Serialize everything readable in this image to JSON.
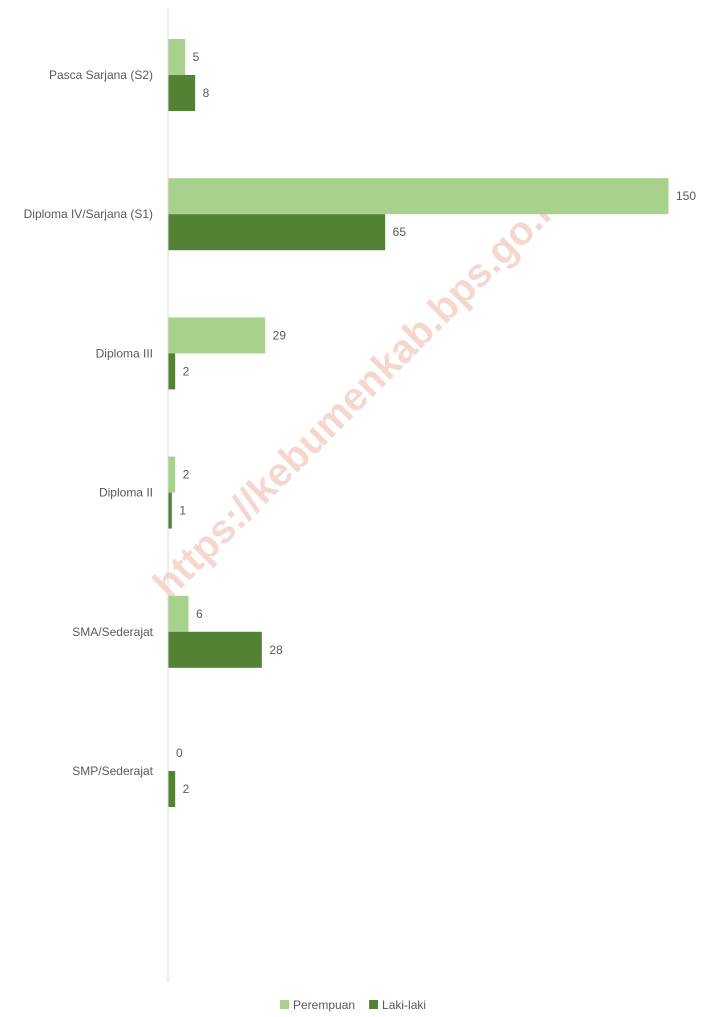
{
  "chart_data": {
    "type": "bar",
    "orientation": "horizontal",
    "categories": [
      "Pasca Sarjana (S2)",
      "Diploma IV/Sarjana (S1)",
      "Diploma III",
      "Diploma II",
      "SMA/Sederajat",
      "SMP/Sederajat"
    ],
    "series": [
      {
        "name": "Perempuan",
        "values": [
          5,
          150,
          29,
          2,
          6,
          0
        ],
        "color": "#a9d18e"
      },
      {
        "name": "Laki-laki",
        "values": [
          8,
          65,
          2,
          1,
          28,
          2
        ],
        "color": "#548235"
      }
    ],
    "xlim": [
      0,
      150
    ],
    "grid": false,
    "legend_position": "bottom",
    "data_labels": true
  },
  "watermark": "https://kebumenkab.bps.go.id",
  "colors": {
    "axis_line": "#d9d9d9",
    "text": "#595959"
  }
}
